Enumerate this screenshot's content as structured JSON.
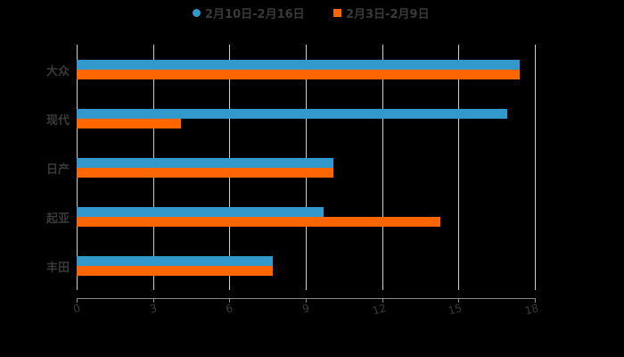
{
  "chart_data": {
    "type": "bar",
    "orientation": "horizontal",
    "title": "",
    "xlabel": "",
    "ylabel": "",
    "categories": [
      "大众",
      "现代",
      "日产",
      "起亚",
      "丰田"
    ],
    "series": [
      {
        "name": "2月10日-2月16日",
        "color": "#3399cc",
        "values": [
          17.4,
          16.9,
          10.1,
          9.7,
          7.7
        ]
      },
      {
        "name": "2月3日-2月9日",
        "color": "#ff6600",
        "values": [
          17.4,
          4.1,
          10.1,
          14.3,
          7.7
        ]
      }
    ],
    "xlim": [
      0,
      18
    ],
    "x_ticks": [
      "0",
      "3",
      "6",
      "9",
      "12",
      "15",
      "18"
    ],
    "grid": "vertical",
    "legend_position": "top"
  },
  "legend": {
    "items": [
      {
        "label": "2月10日-2月16日",
        "color": "#3399cc"
      },
      {
        "label": "2月3日-2月9日",
        "color": "#ff6600"
      }
    ]
  }
}
